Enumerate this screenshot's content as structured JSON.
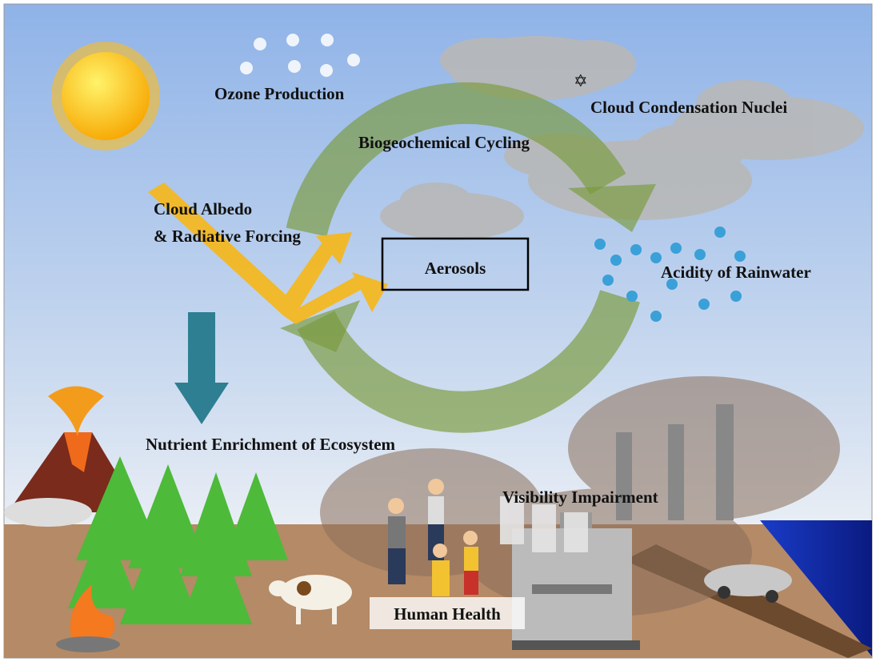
{
  "center": {
    "label": "Aerosols"
  },
  "effects": [
    {
      "lines": [
        "Ozone Production"
      ]
    },
    {
      "lines": [
        "Cloud Condensation Nuclei"
      ]
    },
    {
      "lines": [
        "Biogeochemical Cycling"
      ]
    },
    {
      "lines": [
        "Cloud Albedo",
        "& Radiative Forcing"
      ]
    },
    {
      "lines": [
        "Acidity of Rainwater"
      ]
    },
    {
      "lines": [
        "Nutrient Enrichment of Ecosystem"
      ]
    },
    {
      "lines": [
        "Visibility Impairment"
      ]
    },
    {
      "lines": [
        "Human Health"
      ]
    }
  ]
}
